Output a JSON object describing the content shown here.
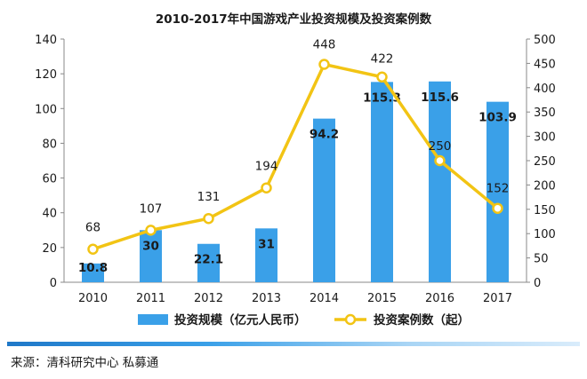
{
  "chart_data": {
    "type": "bar+line",
    "title": "2010-2017年中国游戏产业投资规模及投资案例数",
    "categories": [
      "2010",
      "2011",
      "2012",
      "2013",
      "2014",
      "2015",
      "2016",
      "2017"
    ],
    "series": [
      {
        "name": "投资规模（亿元人民币）",
        "type": "bar",
        "axis": "left",
        "color": "#3aa0e8",
        "values": [
          10.8,
          30,
          22.1,
          31,
          94.2,
          115.3,
          115.6,
          103.9
        ],
        "labels": [
          "10.8",
          "30",
          "22.1",
          "31",
          "94.2",
          "115.3",
          "115.6",
          "103.9"
        ]
      },
      {
        "name": "投资案例数（起）",
        "type": "line",
        "axis": "right",
        "color": "#f2c414",
        "values": [
          68,
          107,
          131,
          194,
          448,
          422,
          250,
          152
        ],
        "labels": [
          "68",
          "107",
          "131",
          "194",
          "448",
          "422",
          "250",
          "152"
        ]
      }
    ],
    "y_left": {
      "min": 0,
      "max": 140,
      "ticks": [
        0,
        20,
        40,
        60,
        80,
        100,
        120,
        140
      ]
    },
    "y_right": {
      "min": 0,
      "max": 500,
      "ticks": [
        0,
        50,
        100,
        150,
        200,
        250,
        300,
        350,
        400,
        450,
        500
      ]
    },
    "grid": false,
    "legend": "bottom"
  },
  "source": "来源：清科研究中心 私募通"
}
